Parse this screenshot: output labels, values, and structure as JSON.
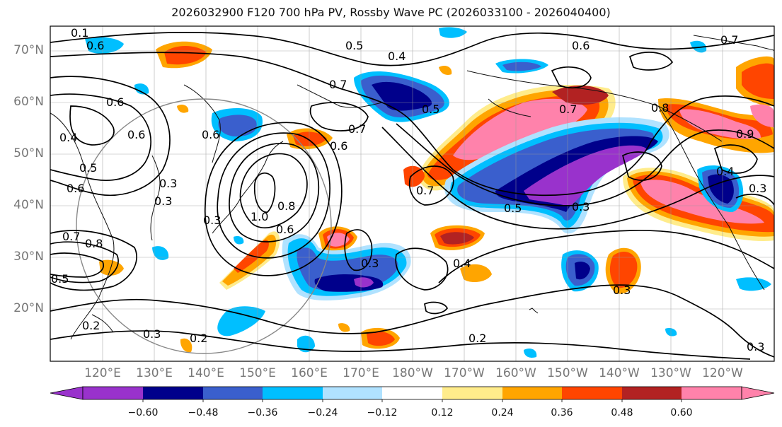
{
  "title": "2026032900 F120 700 hPa PV, Rossby Wave PC (2026033100 - 2026040400)",
  "lat_labels": [
    "70°N",
    "60°N",
    "50°N",
    "40°N",
    "30°N",
    "20°N"
  ],
  "lon_labels": [
    "120°E",
    "130°E",
    "140°E",
    "150°E",
    "160°E",
    "170°E",
    "180°W",
    "170°W",
    "160°W",
    "150°W",
    "140°W",
    "130°W",
    "120°W"
  ],
  "colorbar": {
    "ticks": [
      "−0.60",
      "−0.48",
      "−0.36",
      "−0.24",
      "−0.12",
      "0.12",
      "0.24",
      "0.36",
      "0.48",
      "0.60"
    ],
    "colors": [
      "#9932CC",
      "#00008B",
      "#3A5FCD",
      "#00BFFF",
      "#B0E2FF",
      "#FFFFFF",
      "#FFEC8B",
      "#FFA500",
      "#FF4500",
      "#B22222",
      "#FF82AB"
    ]
  },
  "contour_labels": [
    "0.1",
    "0.6",
    "0.5",
    "0.4",
    "0.6",
    "0.7",
    "0.5",
    "0.7",
    "0.6",
    "0.6",
    "0.6",
    "0.5",
    "0.6",
    "0.4",
    "0.3",
    "0.3",
    "1.0",
    "0.8",
    "0.6",
    "0.7",
    "0.5",
    "0.3",
    "0.4",
    "0.3",
    "0.3",
    "0.2",
    "0.2",
    "0.3",
    "0.2",
    "0.3",
    "0.7",
    "0.8",
    "0.7",
    "0.9",
    "0.4",
    "0.3",
    "0.3",
    "0.8",
    "0.5",
    "0.7",
    "0.6"
  ]
}
